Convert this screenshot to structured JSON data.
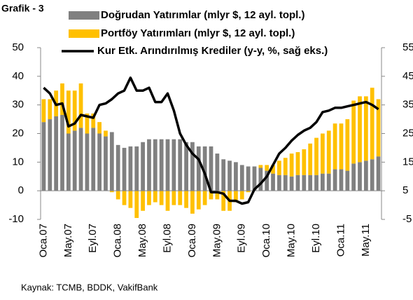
{
  "chart_data": {
    "type": "bar_line",
    "title": "Grafik - 3",
    "source": "Kaynak: TCMB, BDDK, VakifBank",
    "categories": [
      "Oca.07",
      null,
      null,
      null,
      "May.07",
      null,
      null,
      null,
      "Eyl.07",
      null,
      null,
      null,
      "Oca.08",
      null,
      null,
      null,
      "May.08",
      null,
      null,
      null,
      "Eyl.08",
      null,
      null,
      null,
      "Oca.09",
      null,
      null,
      null,
      "May.09",
      null,
      null,
      null,
      "Eyl.09",
      null,
      null,
      null,
      "Oca.10",
      null,
      null,
      null,
      "May.10",
      null,
      null,
      null,
      "Eyl.10",
      null,
      null,
      null,
      "Oca.11",
      null,
      null,
      null,
      "May.11",
      null,
      null
    ],
    "series": [
      {
        "name": "Doğrudan Yatırımlar (mlyr $, 12 ayl. topl.)",
        "color": "#808080",
        "type": "bar",
        "values": [
          24,
          25,
          26,
          26.5,
          20,
          21,
          22,
          20,
          22,
          20,
          19,
          20.5,
          16,
          15,
          15.5,
          15.5,
          17,
          18,
          18,
          18,
          18,
          18,
          18,
          17,
          17,
          15.5,
          15.5,
          15.5,
          13,
          11,
          10.5,
          10,
          9,
          8.5,
          8.5,
          8,
          7,
          6,
          5.5,
          5.5,
          5,
          5.5,
          5.5,
          5.5,
          5.5,
          6,
          6,
          7.5,
          7.5,
          7,
          9.5,
          10,
          10.5,
          11,
          12
        ]
      },
      {
        "name": "Portföy Yatırımları (mlyr $, 12 ayl. topl.)",
        "color": "#ffc000",
        "type": "bar",
        "values": [
          8,
          7,
          9,
          11,
          15,
          14,
          15.5,
          7,
          5,
          4,
          2,
          -0.5,
          -3,
          -5,
          -6,
          -9.5,
          -7,
          -5,
          -4,
          -5,
          -7,
          -5,
          -5,
          -6,
          -8,
          -6.5,
          -5,
          -3,
          -3,
          -7,
          -7,
          -4,
          -3,
          -0.5,
          0,
          1,
          2,
          3,
          5,
          6,
          8,
          8,
          9,
          11,
          13,
          14,
          15,
          16,
          16,
          18,
          22,
          23,
          22.5,
          25,
          20
        ]
      },
      {
        "name": "Kur Etk. Arındırılmış Krediler (y-y, %, sağ eks.)",
        "color": "#000000",
        "type": "line",
        "axis": "y2",
        "values": [
          41,
          39,
          35,
          35.5,
          27.5,
          28.5,
          31.5,
          31,
          30.5,
          35,
          35.5,
          37,
          39,
          40,
          44.5,
          40,
          40,
          41,
          36,
          36,
          39,
          33,
          25,
          21,
          18,
          16,
          11,
          4.5,
          4.5,
          4,
          1.5,
          1.5,
          0.5,
          1,
          5.5,
          7.5,
          10,
          14,
          18,
          20,
          22.5,
          24.5,
          26,
          27,
          29,
          32.5,
          33,
          34,
          34,
          34.5,
          35,
          35.5,
          36,
          35,
          33.5
        ]
      }
    ],
    "ylim": [
      -10,
      50
    ],
    "yticks": [
      -10,
      0,
      10,
      20,
      30,
      40,
      50
    ],
    "y2lim": [
      -5,
      55
    ],
    "y2ticks": [
      -5,
      5,
      15,
      25,
      35,
      45,
      55
    ],
    "legend": "top",
    "grid": false
  }
}
